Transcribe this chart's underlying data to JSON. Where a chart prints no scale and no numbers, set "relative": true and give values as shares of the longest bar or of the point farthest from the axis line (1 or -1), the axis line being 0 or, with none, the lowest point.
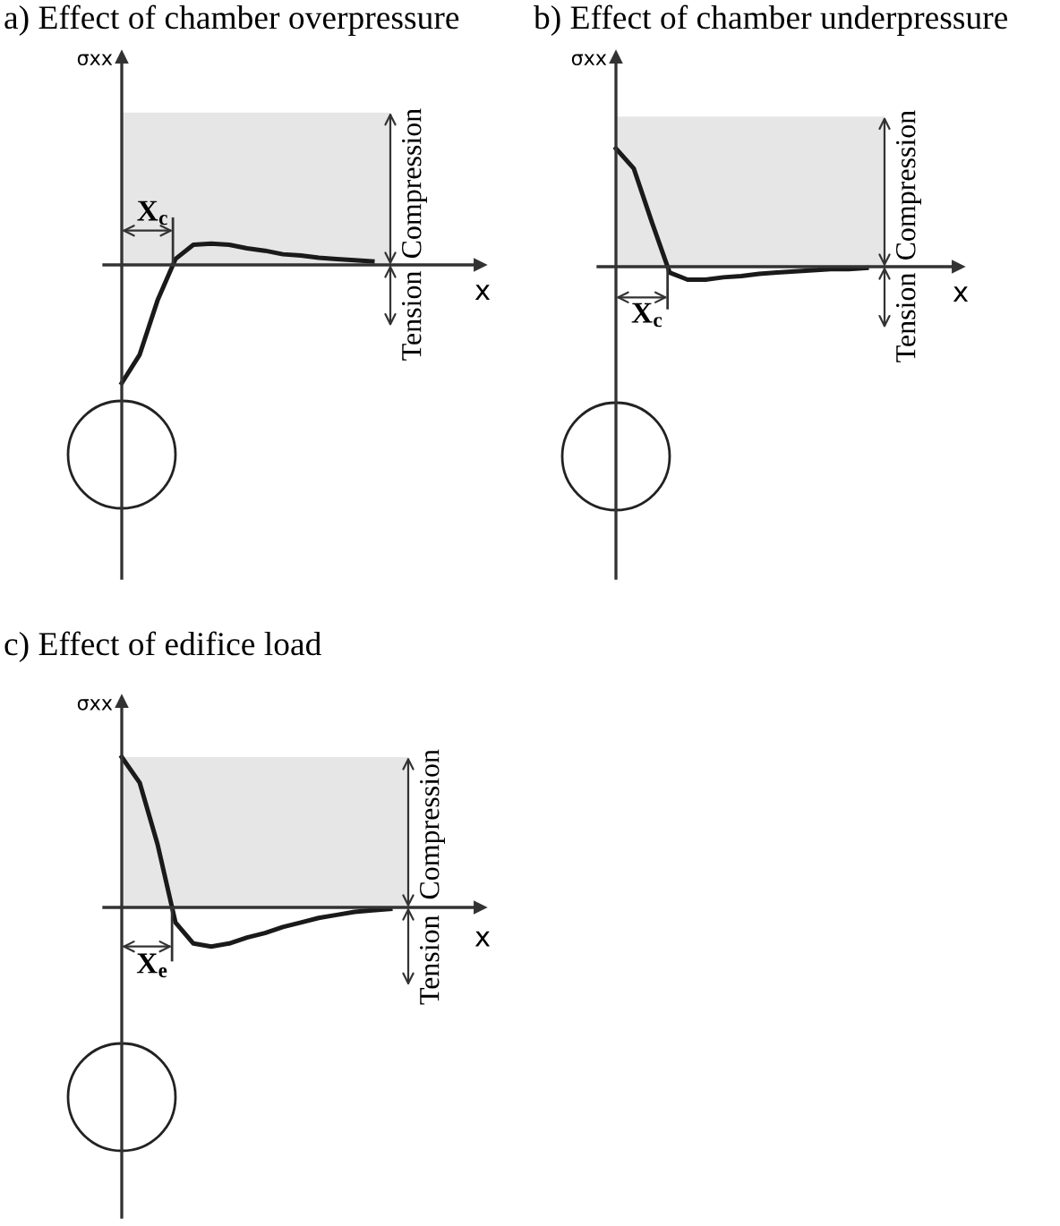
{
  "chart_data": [
    {
      "type": "line",
      "title": "a) Effect of chamber overpressure",
      "xlabel": "x",
      "ylabel": "σxx",
      "relative": true,
      "grid": false,
      "legend": false,
      "marker": "none",
      "line_style": "solid",
      "categories": [
        null,
        null,
        null,
        null,
        null,
        null,
        null,
        null,
        null,
        null,
        null,
        null,
        null,
        null,
        null
      ],
      "series": [
        {
          "color": "#1a1a1a",
          "values": [
            -1,
            -0.76,
            -0.3,
            0.05,
            0.17,
            0.18,
            0.17,
            0.14,
            0.12,
            0.09,
            0.08,
            0.06,
            0.05,
            0.04,
            0.03
          ]
        }
      ],
      "bands": [
        {
          "axis": "y",
          "from": 0,
          "to": 1.29,
          "color": "#e6e6e6"
        }
      ],
      "annotations": [
        "X$_{c}$",
        "Compression",
        "Tension"
      ]
    },
    {
      "type": "line",
      "title": "b) Effect of chamber underpressure",
      "xlabel": "x",
      "ylabel": "σxx",
      "relative": true,
      "grid": false,
      "legend": false,
      "marker": "none",
      "line_style": "solid",
      "categories": [
        null,
        null,
        null,
        null,
        null,
        null,
        null,
        null,
        null,
        null,
        null,
        null,
        null,
        null,
        null
      ],
      "series": [
        {
          "color": "#1a1a1a",
          "values": [
            1,
            0.83,
            0.38,
            -0.05,
            -0.11,
            -0.11,
            -0.09,
            -0.08,
            -0.06,
            -0.05,
            -0.04,
            -0.03,
            -0.02,
            -0.02,
            -0.01
          ]
        }
      ],
      "bands": [
        {
          "axis": "y",
          "from": 0,
          "to": 1.27,
          "color": "#e6e6e6"
        }
      ],
      "annotations": [
        "X$_{c}$",
        "Compression",
        "Tension"
      ]
    },
    {
      "type": "line",
      "title": "c) Effect of edifice load",
      "xlabel": "x",
      "ylabel": "σxx",
      "relative": true,
      "grid": false,
      "legend": false,
      "marker": "none",
      "line_style": "solid",
      "categories": [
        null,
        null,
        null,
        null,
        null,
        null,
        null,
        null,
        null,
        null,
        null,
        null,
        null,
        null,
        null,
        null
      ],
      "series": [
        {
          "color": "#1a1a1a",
          "values": [
            1,
            0.83,
            0.42,
            -0.1,
            -0.24,
            -0.26,
            -0.24,
            -0.2,
            -0.17,
            -0.13,
            -0.1,
            -0.07,
            -0.05,
            -0.03,
            -0.02,
            -0.01
          ]
        }
      ],
      "bands": [
        {
          "axis": "y",
          "from": 0,
          "to": 1.0,
          "color": "#e6e6e6"
        }
      ],
      "annotations": [
        "X$_{e}$",
        "Compression",
        "Tension"
      ]
    }
  ]
}
